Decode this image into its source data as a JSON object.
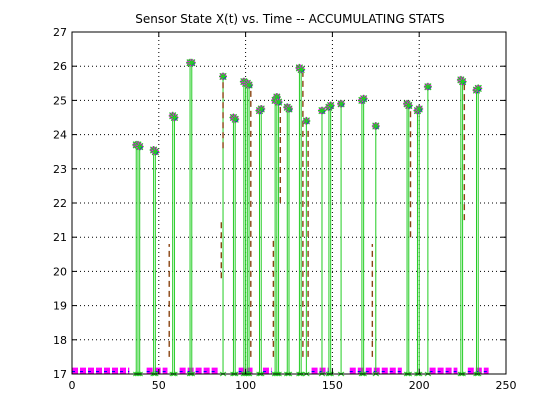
{
  "chart_data": {
    "type": "scatter",
    "title": "Sensor State X(t) vs. Time -- ACCUMULATING STATS",
    "xlabel": "",
    "ylabel": "",
    "xlim": [
      0,
      250
    ],
    "ylim": [
      17,
      27
    ],
    "xticks": [
      0,
      50,
      100,
      150,
      200,
      250
    ],
    "yticks": [
      17,
      18,
      19,
      20,
      21,
      22,
      23,
      24,
      25,
      26,
      27
    ],
    "grid": "dotted",
    "legend": "none",
    "colors": {
      "stem": "#22cc22",
      "dash": "#8b4513",
      "marker_a": "#ff00ff",
      "marker_b": "#0000ff",
      "marker_c": "#22cc22",
      "axis": "#000000"
    },
    "peaks": [
      {
        "x": 37,
        "y": 23.7
      },
      {
        "x": 38,
        "y": 23.7
      },
      {
        "x": 39,
        "y": 23.65
      },
      {
        "x": 47,
        "y": 23.55
      },
      {
        "x": 48,
        "y": 23.5
      },
      {
        "x": 58,
        "y": 24.55
      },
      {
        "x": 59,
        "y": 24.5
      },
      {
        "x": 68,
        "y": 26.1
      },
      {
        "x": 69,
        "y": 26.1
      },
      {
        "x": 87,
        "y": 25.7
      },
      {
        "x": 93,
        "y": 24.5
      },
      {
        "x": 94,
        "y": 24.45
      },
      {
        "x": 99,
        "y": 25.55
      },
      {
        "x": 100,
        "y": 25.5
      },
      {
        "x": 101,
        "y": 25.5
      },
      {
        "x": 102,
        "y": 25.45
      },
      {
        "x": 108,
        "y": 24.7
      },
      {
        "x": 109,
        "y": 24.75
      },
      {
        "x": 117,
        "y": 25.0
      },
      {
        "x": 118,
        "y": 25.1
      },
      {
        "x": 119,
        "y": 24.95
      },
      {
        "x": 124,
        "y": 24.8
      },
      {
        "x": 125,
        "y": 24.75
      },
      {
        "x": 131,
        "y": 25.95
      },
      {
        "x": 132,
        "y": 25.9
      },
      {
        "x": 135,
        "y": 24.4
      },
      {
        "x": 144,
        "y": 24.7
      },
      {
        "x": 148,
        "y": 24.8
      },
      {
        "x": 149,
        "y": 24.85
      },
      {
        "x": 155,
        "y": 24.9
      },
      {
        "x": 167,
        "y": 25.0
      },
      {
        "x": 168,
        "y": 25.05
      },
      {
        "x": 175,
        "y": 24.25
      },
      {
        "x": 193,
        "y": 24.9
      },
      {
        "x": 194,
        "y": 24.85
      },
      {
        "x": 199,
        "y": 24.7
      },
      {
        "x": 200,
        "y": 24.75
      },
      {
        "x": 205,
        "y": 25.4
      },
      {
        "x": 224,
        "y": 25.6
      },
      {
        "x": 225,
        "y": 25.55
      },
      {
        "x": 233,
        "y": 25.3
      },
      {
        "x": 234,
        "y": 25.35
      }
    ],
    "dashes": [
      {
        "x": 56,
        "y_low": 17.5,
        "y_high": 20.8
      },
      {
        "x": 86,
        "y_low": 19.8,
        "y_high": 21.5
      },
      {
        "x": 87,
        "y_low": 23.6,
        "y_high": 25.7
      },
      {
        "x": 103,
        "y_low": 17.5,
        "y_high": 25.3
      },
      {
        "x": 116,
        "y_low": 17.5,
        "y_high": 21.0
      },
      {
        "x": 120,
        "y_low": 22.0,
        "y_high": 24.9
      },
      {
        "x": 133,
        "y_low": 17.5,
        "y_high": 25.8
      },
      {
        "x": 136,
        "y_low": 17.5,
        "y_high": 24.2
      },
      {
        "x": 173,
        "y_low": 17.5,
        "y_high": 20.8
      },
      {
        "x": 195,
        "y_low": 21.0,
        "y_high": 24.7
      },
      {
        "x": 226,
        "y_low": 21.5,
        "y_high": 25.5
      }
    ],
    "base_y": 17.1,
    "base_segments": [
      [
        0,
        33
      ],
      [
        43,
        55
      ],
      [
        62,
        84
      ],
      [
        96,
        104
      ],
      [
        110,
        115
      ],
      [
        138,
        148
      ],
      [
        160,
        190
      ],
      [
        206,
        222
      ],
      [
        228,
        240
      ]
    ]
  }
}
